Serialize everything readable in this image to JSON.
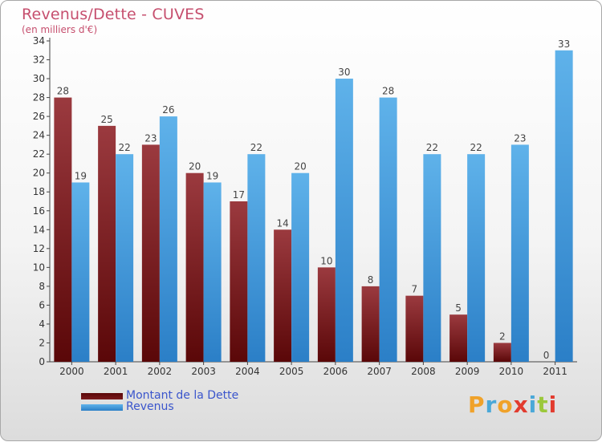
{
  "title": "Revenus/Dette - CUVES",
  "subtitle": "(en milliers d'€)",
  "brand": {
    "text": "Proxiti",
    "letter_colors": [
      "#f0a22a",
      "#4aa8d8",
      "#f0a22a",
      "#e23b2e",
      "#4aa8d8",
      "#9bc83b",
      "#e23b2e"
    ]
  },
  "colors": {
    "dette_top": "#9b3a3f",
    "dette_bottom": "#5a0708",
    "revenus_top": "#5fb2ea",
    "revenus_bottom": "#2b7fc7",
    "axis": "#444444",
    "label": "#444444"
  },
  "chart_data": {
    "type": "bar",
    "categories": [
      "2000",
      "2001",
      "2002",
      "2003",
      "2004",
      "2005",
      "2006",
      "2007",
      "2008",
      "2009",
      "2010",
      "2011"
    ],
    "series": [
      {
        "name": "Montant de la Dette",
        "values": [
          28,
          25,
          23,
          20,
          17,
          14,
          10,
          8,
          7,
          5,
          2,
          0
        ]
      },
      {
        "name": "Revenus",
        "values": [
          19,
          22,
          26,
          19,
          22,
          20,
          30,
          28,
          22,
          22,
          23,
          33
        ]
      }
    ],
    "ylim": [
      0,
      34
    ],
    "yticks": [
      0,
      2,
      4,
      6,
      8,
      10,
      12,
      14,
      16,
      18,
      20,
      22,
      24,
      26,
      28,
      30,
      32,
      34
    ],
    "legend_position": "bottom-left"
  }
}
